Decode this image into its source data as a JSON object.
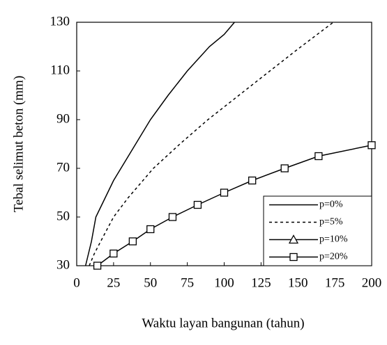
{
  "chart_data": {
    "type": "line",
    "xlabel": "Waktu layan bangunan (tahun)",
    "ylabel": "Tebal selimut beton (mm)",
    "xlim": [
      0,
      200
    ],
    "xticks": [
      0,
      25,
      50,
      75,
      100,
      125,
      150,
      175,
      200
    ],
    "ylim": [
      30,
      130
    ],
    "yticks": [
      30,
      50,
      70,
      90,
      110,
      130
    ],
    "grid": false,
    "legend": "lower right",
    "series": [
      {
        "name": "p=0%",
        "color": "#000000",
        "style": "solid",
        "marker": "none",
        "x": [
          6,
          8,
          10,
          13,
          17,
          25,
          35,
          50,
          62,
          75,
          90,
          100,
          107
        ],
        "values": [
          30,
          35,
          40,
          50,
          55,
          65,
          75,
          90,
          100,
          110,
          120,
          125,
          130
        ]
      },
      {
        "name": "p=5%",
        "color": "#000000",
        "style": "dashed",
        "marker": "none",
        "x": [
          8.5,
          12,
          18,
          25,
          35,
          52,
          70,
          89,
          110,
          131,
          150,
          174
        ],
        "values": [
          30,
          35,
          42,
          50,
          58,
          70,
          80,
          90,
          100,
          110,
          119,
          130
        ]
      },
      {
        "name": "p=10%",
        "color": "#000000",
        "style": "solid",
        "marker": "triangle",
        "x": [],
        "values": []
      },
      {
        "name": "p=20%",
        "color": "#000000",
        "style": "solid",
        "marker": "square",
        "x": [
          14,
          25,
          38,
          50,
          65,
          82,
          100,
          119,
          141,
          164,
          200
        ],
        "values": [
          30,
          35,
          40,
          45,
          50,
          55,
          60,
          65,
          70,
          75,
          79.5
        ]
      }
    ]
  }
}
